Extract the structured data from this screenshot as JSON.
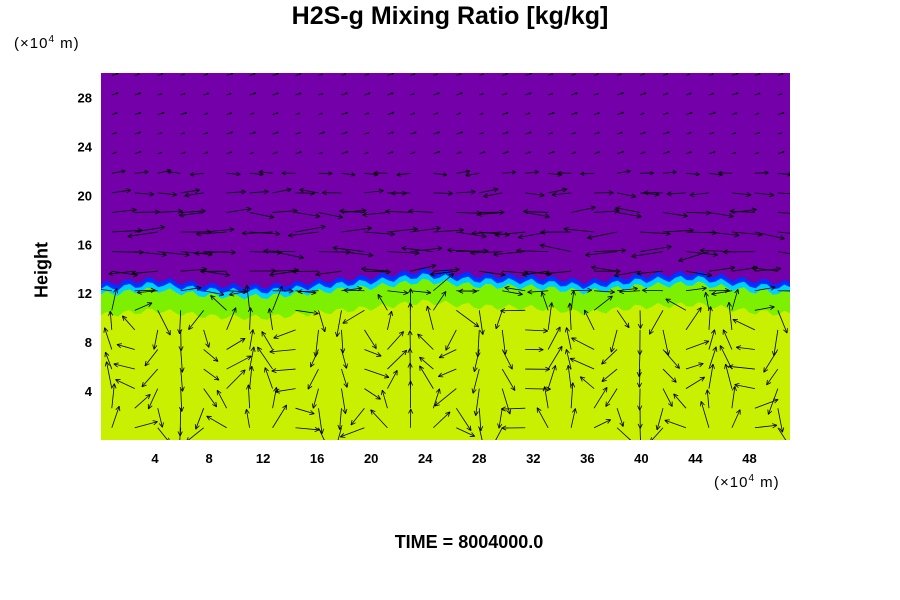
{
  "chart_data": {
    "type": "heatmap",
    "title": "H2S-g Mixing Ratio [kg/kg]",
    "ylabel": "Height",
    "xlabel": "",
    "y_unit_prefix": "(×10",
    "y_unit_exp": "4",
    "y_unit_suffix": " m)",
    "x_unit_prefix": "(×10",
    "x_unit_exp": "4",
    "x_unit_suffix": " m)",
    "xlim": [
      0,
      51
    ],
    "ylim": [
      0,
      30
    ],
    "xticks": [
      4,
      8,
      12,
      16,
      20,
      24,
      28,
      32,
      36,
      40,
      44,
      48
    ],
    "yticks": [
      4,
      8,
      12,
      16,
      20,
      24,
      28
    ],
    "colors": {
      "upper_layer": "#7300a8",
      "lower_layer": "#c8f000",
      "transition_green": "#7cf000",
      "transition_cyan": "#00d0ff",
      "transition_blue": "#0030ff",
      "vectors": "#000000"
    },
    "interface_height_profile": {
      "x": [
        0,
        4,
        8,
        12,
        16,
        20,
        24,
        28,
        32,
        36,
        40,
        44,
        48,
        51
      ],
      "y": [
        12.2,
        12.6,
        12.1,
        12.0,
        12.4,
        12.8,
        13.3,
        12.9,
        12.8,
        12.4,
        12.9,
        13.1,
        12.5,
        12.3
      ]
    },
    "vector_field": "wind vectors overlaid across the domain"
  },
  "footer": {
    "time_label": "TIME = 8004000.0"
  }
}
